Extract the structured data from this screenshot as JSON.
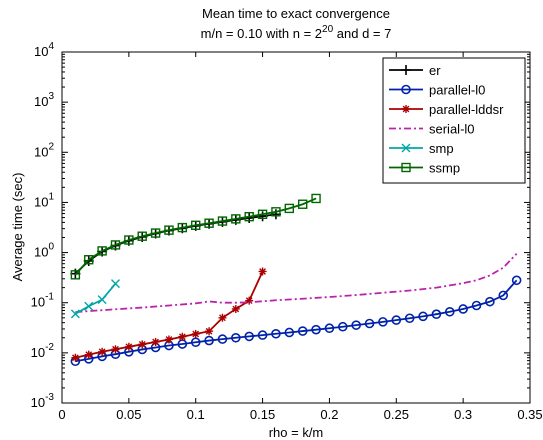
{
  "chart_data": {
    "type": "line",
    "title_line1": "Mean time to exact convergence",
    "title_line2_prefix": "m/n = 0.10 with n = 2",
    "title_line2_exp": "20",
    "title_line2_suffix": " and d = 7",
    "xlabel": "rho = k/m",
    "ylabel": "Average time (sec)",
    "xlim": [
      0,
      0.35
    ],
    "ylim_log10": [
      -3,
      4
    ],
    "yscale": "log",
    "grid": false,
    "legend_position": "top-right",
    "x_ticks": [
      "0",
      "0.05",
      "0.1",
      "0.15",
      "0.2",
      "0.25",
      "0.3",
      "0.35"
    ],
    "y_ticks": [
      {
        "base": "10",
        "exp": "-3"
      },
      {
        "base": "10",
        "exp": "-2"
      },
      {
        "base": "10",
        "exp": "-1"
      },
      {
        "base": "10",
        "exp": "0"
      },
      {
        "base": "10",
        "exp": "1"
      },
      {
        "base": "10",
        "exp": "2"
      },
      {
        "base": "10",
        "exp": "3"
      },
      {
        "base": "10",
        "exp": "4"
      }
    ],
    "series": [
      {
        "name": "er",
        "color": "#000000",
        "marker": "plus",
        "dash": "",
        "x": [
          0.01,
          0.02,
          0.03,
          0.04,
          0.05,
          0.06,
          0.07,
          0.08,
          0.09,
          0.1,
          0.11,
          0.12,
          0.13,
          0.14,
          0.15,
          0.16
        ],
        "y": [
          0.38,
          0.68,
          1.05,
          1.38,
          1.72,
          2.05,
          2.4,
          2.75,
          3.05,
          3.4,
          3.75,
          4.1,
          4.5,
          4.9,
          5.3,
          5.8
        ]
      },
      {
        "name": "parallel-l0",
        "color": "#0022aa",
        "marker": "circle",
        "dash": "",
        "x": [
          0.01,
          0.02,
          0.03,
          0.04,
          0.05,
          0.06,
          0.07,
          0.08,
          0.09,
          0.1,
          0.11,
          0.12,
          0.13,
          0.14,
          0.15,
          0.16,
          0.17,
          0.18,
          0.19,
          0.2,
          0.21,
          0.22,
          0.23,
          0.24,
          0.25,
          0.26,
          0.27,
          0.28,
          0.29,
          0.3,
          0.31,
          0.32,
          0.33,
          0.34
        ],
        "y": [
          0.0068,
          0.0076,
          0.0085,
          0.0094,
          0.0105,
          0.0117,
          0.0128,
          0.014,
          0.015,
          0.0163,
          0.0176,
          0.0188,
          0.02,
          0.0213,
          0.0226,
          0.024,
          0.0255,
          0.0272,
          0.029,
          0.031,
          0.0332,
          0.0357,
          0.0385,
          0.0415,
          0.045,
          0.049,
          0.0535,
          0.059,
          0.066,
          0.075,
          0.088,
          0.105,
          0.14,
          0.28
        ]
      },
      {
        "name": "parallel-lddsr",
        "color": "#aa0000",
        "marker": "star",
        "dash": "",
        "x": [
          0.01,
          0.02,
          0.03,
          0.04,
          0.05,
          0.06,
          0.07,
          0.08,
          0.09,
          0.1,
          0.11,
          0.12,
          0.13,
          0.14,
          0.15
        ],
        "y": [
          0.008,
          0.0092,
          0.0105,
          0.0118,
          0.0132,
          0.0148,
          0.0165,
          0.0185,
          0.021,
          0.0238,
          0.027,
          0.05,
          0.075,
          0.11,
          0.42
        ]
      },
      {
        "name": "serial-l0",
        "color": "#bb22aa",
        "marker": "none",
        "dash": "7 3 2 3",
        "x": [
          0.01,
          0.02,
          0.04,
          0.06,
          0.08,
          0.1,
          0.11,
          0.12,
          0.13,
          0.14,
          0.16,
          0.18,
          0.2,
          0.22,
          0.24,
          0.26,
          0.28,
          0.3,
          0.31,
          0.32,
          0.33,
          0.34
        ],
        "y": [
          0.065,
          0.068,
          0.074,
          0.08,
          0.088,
          0.097,
          0.106,
          0.1,
          0.1,
          0.102,
          0.112,
          0.12,
          0.13,
          0.142,
          0.158,
          0.175,
          0.2,
          0.245,
          0.28,
          0.35,
          0.5,
          0.95
        ]
      },
      {
        "name": "smp",
        "color": "#00a6a6",
        "marker": "x",
        "dash": "",
        "x": [
          0.01,
          0.02,
          0.03,
          0.04
        ],
        "y": [
          0.06,
          0.085,
          0.115,
          0.24
        ]
      },
      {
        "name": "ssmp",
        "color": "#006600",
        "marker": "square",
        "dash": "",
        "x": [
          0.01,
          0.02,
          0.03,
          0.04,
          0.05,
          0.06,
          0.07,
          0.08,
          0.09,
          0.1,
          0.11,
          0.12,
          0.13,
          0.14,
          0.15,
          0.16,
          0.17,
          0.18,
          0.19
        ],
        "y": [
          0.36,
          0.72,
          1.08,
          1.42,
          1.78,
          2.12,
          2.45,
          2.8,
          3.15,
          3.5,
          3.85,
          4.25,
          4.7,
          5.2,
          5.8,
          6.5,
          7.6,
          9.2,
          12.0
        ]
      }
    ]
  }
}
